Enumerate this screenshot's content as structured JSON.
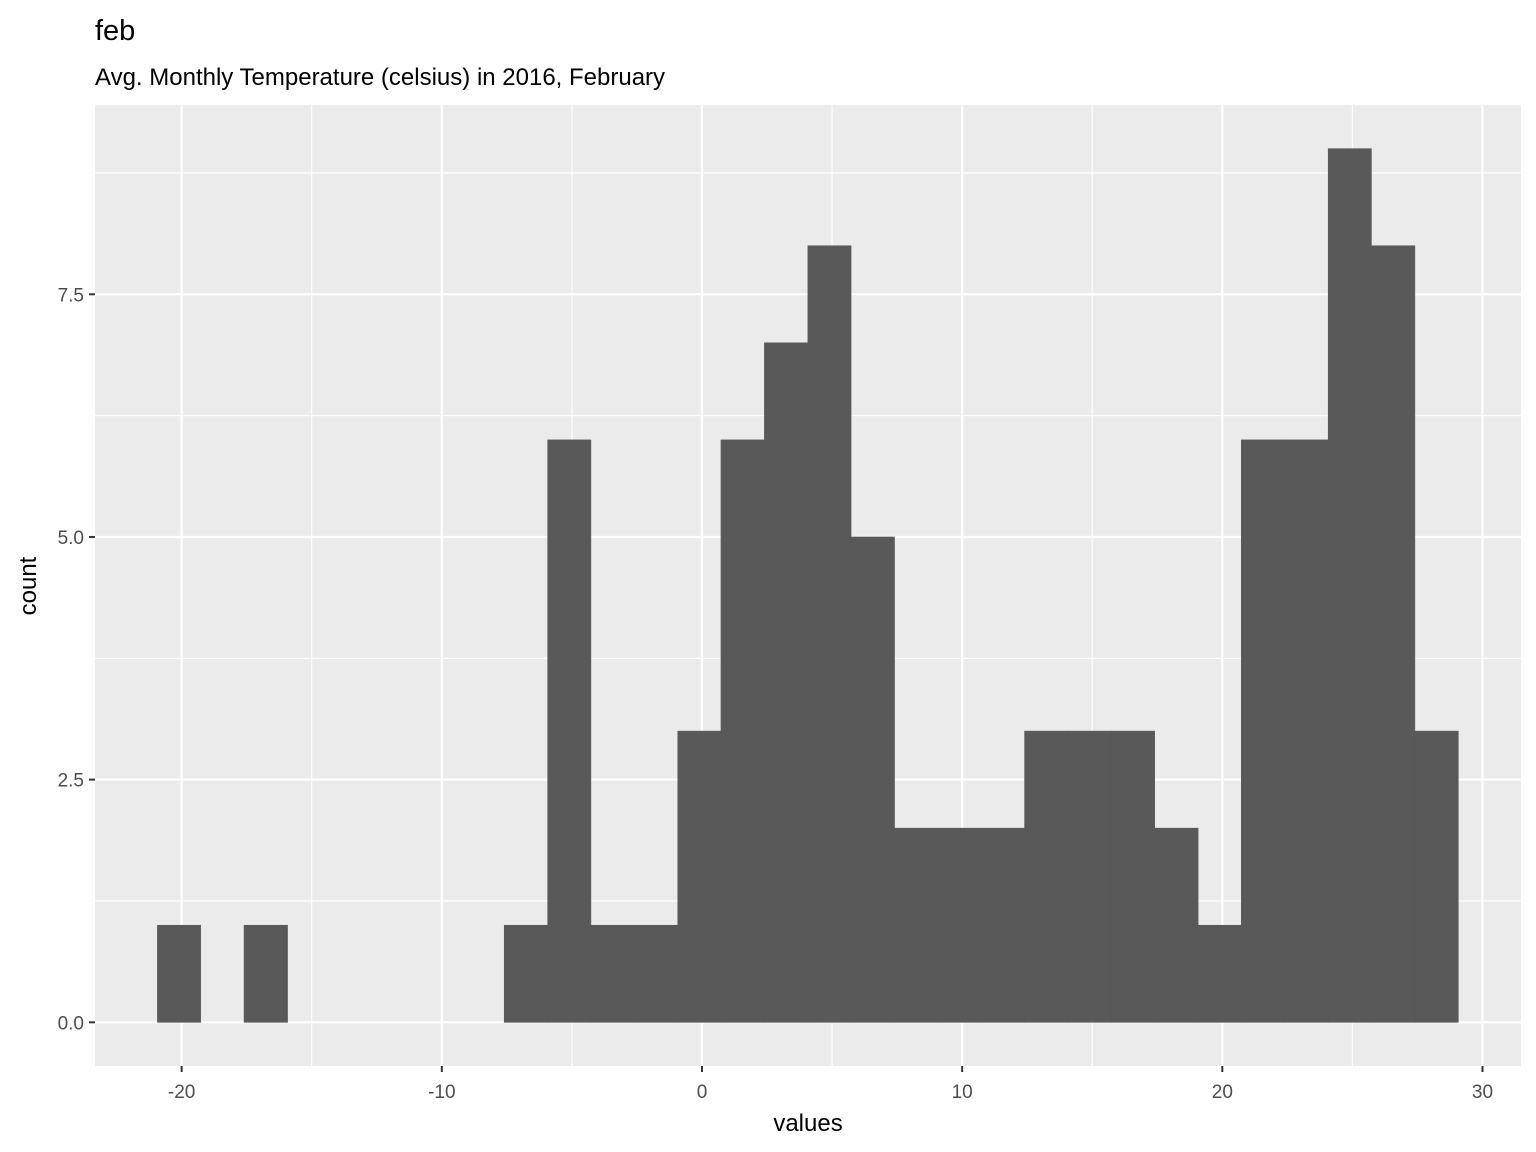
{
  "chart_data": {
    "type": "bar",
    "title": "feb",
    "subtitle": "Avg. Monthly Temperature (celsius) in 2016, February",
    "xlabel": "values",
    "ylabel": "count",
    "bins": [
      {
        "x0": -20.93,
        "x1": -19.27,
        "count": 1
      },
      {
        "x0": -17.6,
        "x1": -15.93,
        "count": 1
      },
      {
        "x0": -7.6,
        "x1": -5.93,
        "count": 1
      },
      {
        "x0": -5.93,
        "x1": -4.27,
        "count": 6
      },
      {
        "x0": -4.27,
        "x1": -2.6,
        "count": 1
      },
      {
        "x0": -2.6,
        "x1": -0.93,
        "count": 1
      },
      {
        "x0": -0.93,
        "x1": 0.73,
        "count": 3
      },
      {
        "x0": 0.73,
        "x1": 2.4,
        "count": 6
      },
      {
        "x0": 2.4,
        "x1": 4.07,
        "count": 7
      },
      {
        "x0": 4.07,
        "x1": 5.73,
        "count": 8
      },
      {
        "x0": 5.73,
        "x1": 7.4,
        "count": 5
      },
      {
        "x0": 7.4,
        "x1": 9.07,
        "count": 2
      },
      {
        "x0": 9.07,
        "x1": 10.73,
        "count": 2
      },
      {
        "x0": 10.73,
        "x1": 12.4,
        "count": 2
      },
      {
        "x0": 12.4,
        "x1": 14.07,
        "count": 3
      },
      {
        "x0": 14.07,
        "x1": 15.73,
        "count": 3
      },
      {
        "x0": 15.73,
        "x1": 17.4,
        "count": 3
      },
      {
        "x0": 17.4,
        "x1": 19.07,
        "count": 2
      },
      {
        "x0": 19.07,
        "x1": 20.73,
        "count": 1
      },
      {
        "x0": 20.73,
        "x1": 22.4,
        "count": 6
      },
      {
        "x0": 22.4,
        "x1": 24.07,
        "count": 6
      },
      {
        "x0": 24.07,
        "x1": 25.73,
        "count": 9
      },
      {
        "x0": 25.73,
        "x1": 27.4,
        "count": 8
      },
      {
        "x0": 27.4,
        "x1": 29.07,
        "count": 3
      }
    ],
    "xlim": [
      -23.33,
      31.48
    ],
    "ylim": [
      -0.45,
      9.45
    ],
    "xticks": [
      -20,
      -10,
      0,
      10,
      20,
      30
    ],
    "xtick_labels": [
      "-20",
      "-10",
      "0",
      "10",
      "20",
      "30"
    ],
    "yticks": [
      0,
      2.5,
      5,
      7.5
    ],
    "ytick_labels": [
      "0.0",
      "2.5",
      "5.0",
      "7.5"
    ],
    "grid": true,
    "bar_color": "#595959",
    "panel_color": "#ebebeb",
    "grid_color": "#ffffff"
  }
}
